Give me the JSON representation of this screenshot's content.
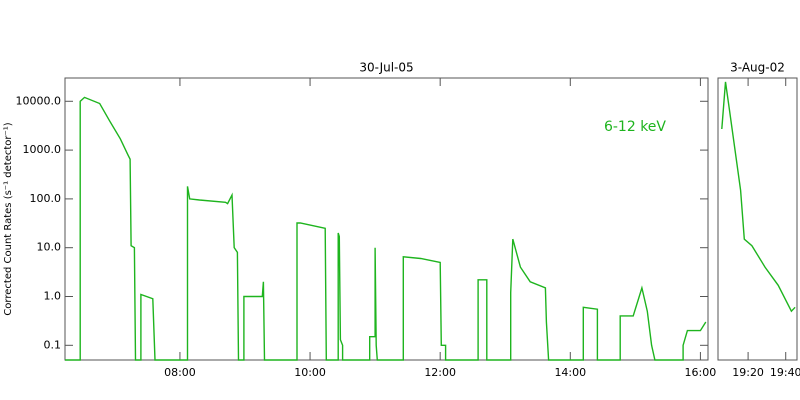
{
  "chart_data": [
    {
      "type": "line",
      "title": "30-Jul-05",
      "ylabel": "Corrected Count Rates (s⁻¹ detector⁻¹)",
      "annotation": "6-12 keV",
      "log_y": true,
      "x": [
        "06:14",
        "06:28",
        "06:28",
        "06:32",
        "06:46",
        "06:55",
        "07:05",
        "07:12",
        "07:14",
        "07:15",
        "07:18",
        "07:19",
        "07:24",
        "07:24",
        "07:35",
        "07:37",
        "08:07",
        "08:07",
        "08:09",
        "08:18",
        "08:42",
        "08:44",
        "08:48",
        "08:50",
        "08:53",
        "08:54",
        "08:59",
        "08:59",
        "09:16",
        "09:17",
        "09:18",
        "09:48",
        "09:48",
        "09:51",
        "10:14",
        "10:15",
        "10:26",
        "10:26",
        "10:27",
        "10:28",
        "10:30",
        "10:30",
        "10:55",
        "10:55",
        "11:00",
        "11:00",
        "11:01",
        "11:02",
        "11:26",
        "11:26",
        "11:42",
        "12:00",
        "12:01",
        "12:05",
        "12:05",
        "12:35",
        "12:35",
        "12:43",
        "12:43",
        "13:05",
        "13:05",
        "13:07",
        "13:14",
        "13:23",
        "13:37",
        "13:38",
        "13:40",
        "14:12",
        "14:12",
        "14:25",
        "14:25",
        "14:46",
        "14:46",
        "14:58",
        "15:06",
        "15:11",
        "15:15",
        "15:18",
        "15:44",
        "15:44",
        "15:48",
        "16:00",
        "16:05"
      ],
      "series": [
        {
          "color": "#1eb41e",
          "values": [
            0.05,
            0.05,
            10000,
            12000,
            9000,
            4000,
            1700,
            800,
            650,
            11,
            10,
            0.05,
            0.05,
            1.1,
            0.9,
            0.05,
            0.05,
            180,
            100,
            95,
            85,
            80,
            120,
            10,
            8,
            0.05,
            0.05,
            1,
            1,
            2,
            0.05,
            0.05,
            32,
            32,
            25,
            0.05,
            0.05,
            20,
            17,
            0.13,
            0.1,
            0.05,
            0.05,
            0.15,
            0.15,
            10,
            0.1,
            0.05,
            0.05,
            6.5,
            6,
            5,
            0.1,
            0.1,
            0.05,
            0.05,
            2.2,
            2.2,
            0.05,
            0.05,
            1.2,
            15,
            4,
            2,
            1.5,
            0.3,
            0.05,
            0.05,
            0.6,
            0.55,
            0.05,
            0.05,
            0.4,
            0.4,
            1.5,
            0.5,
            0.1,
            0.05,
            0.05,
            0.1,
            0.2,
            0.2,
            0.3
          ]
        }
      ],
      "xlim": [
        "06:14",
        "16:07"
      ],
      "xticks": [
        "08:00",
        "10:00",
        "12:00",
        "14:00",
        "16:00"
      ],
      "ylim": [
        0.05,
        30000
      ],
      "yticks": [
        0.1,
        {
          "value": 1,
          "label": "1.0"
        },
        {
          "value": 10,
          "label": "10.0"
        },
        {
          "value": 100,
          "label": "100.0"
        },
        {
          "value": 1000,
          "label": "1000.0"
        },
        {
          "value": 10000,
          "label": "10000.0"
        }
      ]
    },
    {
      "type": "line",
      "title": "3-Aug-02",
      "log_y": true,
      "x": [
        "19:06",
        "19:08",
        "19:10",
        "19:16",
        "19:18",
        "19:22",
        "19:29",
        "19:36",
        "19:43",
        "19:45"
      ],
      "series": [
        {
          "color": "#1eb41e",
          "values": [
            2700,
            25000,
            7000,
            150,
            15,
            11,
            4,
            1.7,
            0.5,
            0.6
          ]
        }
      ],
      "xlim": [
        "19:04",
        "19:46"
      ],
      "xticks": [
        "19:20",
        "19:40"
      ],
      "ylim": [
        0.05,
        30000
      ]
    }
  ]
}
